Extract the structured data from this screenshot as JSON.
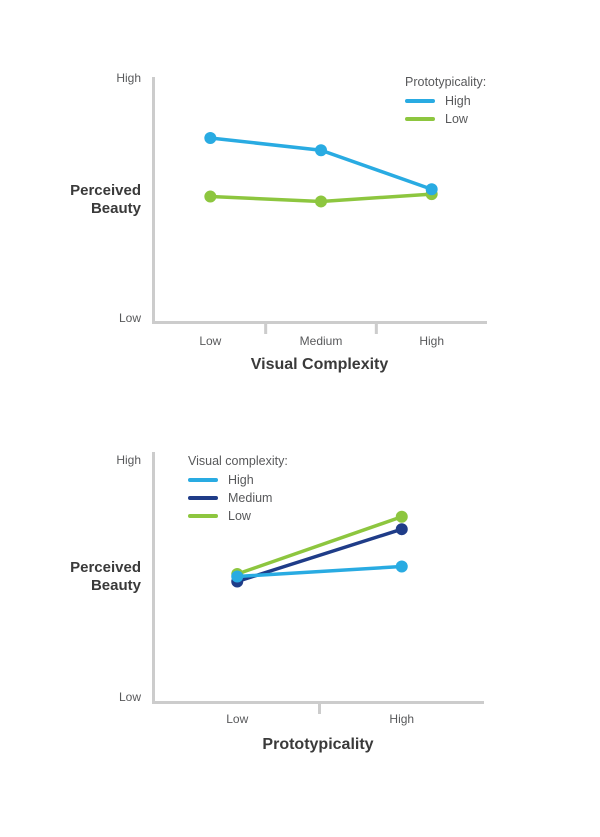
{
  "style": {
    "background": "#ffffff",
    "axis_color": "#cccccc",
    "tick_text_color": "#58595b",
    "title_text_color": "#3a3a3a"
  },
  "chart_data": [
    {
      "type": "line",
      "title": "",
      "xlabel": "Visual Complexity",
      "ylabel": "Perceived Beauty",
      "y_ticks": [
        "High",
        "Low"
      ],
      "ylim_note": "qualitative axis Low to High; series values are relative 0-1 estimates",
      "categories": [
        "Low",
        "Medium",
        "High"
      ],
      "grid": false,
      "legend_title": "Prototypicality:",
      "legend_position": "top-right",
      "series": [
        {
          "name": "High",
          "color": "#29abe2",
          "values": [
            0.75,
            0.7,
            0.54
          ]
        },
        {
          "name": "Low",
          "color": "#8dc63f",
          "values": [
            0.51,
            0.49,
            0.52
          ]
        }
      ]
    },
    {
      "type": "line",
      "title": "",
      "xlabel": "Prototypicality",
      "ylabel": "Perceived Beauty",
      "y_ticks": [
        "High",
        "Low"
      ],
      "ylim_note": "qualitative axis Low to High; series values are relative 0-1 estimates",
      "categories": [
        "Low",
        "High"
      ],
      "grid": false,
      "legend_title": "Visual complexity:",
      "legend_position": "top-left",
      "series": [
        {
          "name": "High",
          "color": "#29abe2",
          "values": [
            0.5,
            0.54
          ]
        },
        {
          "name": "Medium",
          "color": "#1f3c88",
          "values": [
            0.48,
            0.69
          ]
        },
        {
          "name": "Low",
          "color": "#8dc63f",
          "values": [
            0.51,
            0.74
          ]
        }
      ]
    }
  ]
}
